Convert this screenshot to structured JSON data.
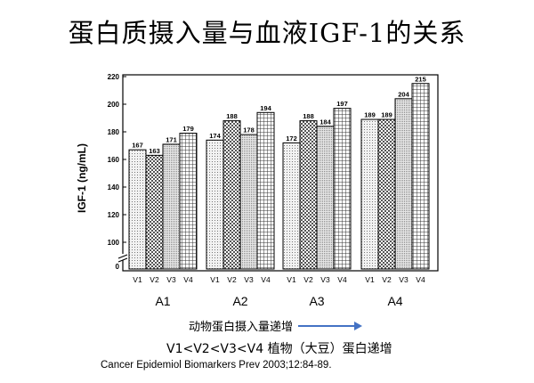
{
  "title": "蛋白质摄入量与血液IGF-1的关系",
  "chart_data": {
    "type": "bar",
    "ylabel": "IGF-1 (ng/mL)",
    "ylim": [
      100,
      220
    ],
    "yticks": [
      100,
      120,
      140,
      160,
      180,
      200,
      220
    ],
    "y_zero_label": "0",
    "axis_break": true,
    "groups": [
      {
        "label": "A1",
        "categories": [
          "V1",
          "V2",
          "V3",
          "V4"
        ],
        "values": [
          167,
          163,
          171,
          179
        ]
      },
      {
        "label": "A2",
        "categories": [
          "V1",
          "V2",
          "V3",
          "V4"
        ],
        "values": [
          174,
          188,
          178,
          194
        ]
      },
      {
        "label": "A3",
        "categories": [
          "V1",
          "V2",
          "V3",
          "V4"
        ],
        "values": [
          172,
          188,
          184,
          197
        ]
      },
      {
        "label": "A4",
        "categories": [
          "V1",
          "V2",
          "V3",
          "V4"
        ],
        "values": [
          189,
          189,
          204,
          215
        ]
      }
    ],
    "patterns": [
      "dots",
      "checker",
      "fine",
      "grid"
    ]
  },
  "notes": {
    "animal_trend": "动物蛋白摄入量递增",
    "plant_order": "V1<V2<V3<V4 植物（大豆）蛋白递增",
    "citation": "Cancer Epidemiol Biomarkers Prev 2003;12:84-89."
  },
  "colors": {
    "arrow": "#4472c4",
    "frame": "#000000"
  }
}
